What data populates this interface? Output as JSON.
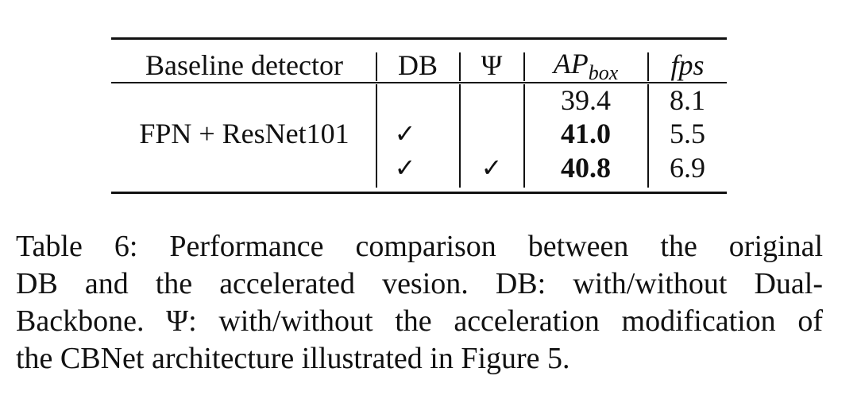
{
  "table": {
    "columns": {
      "baseline": "Baseline detector",
      "db": "DB",
      "psi": "Ψ",
      "ap_main": "AP",
      "ap_sub": "box",
      "fps": "fps"
    },
    "group_label": "FPN + ResNet101",
    "check_mark": "✓",
    "rows": [
      {
        "db": "",
        "psi": "",
        "ap": "39.4",
        "ap_bold": false,
        "fps": "8.1"
      },
      {
        "db": "✓",
        "psi": "",
        "ap": "41.0",
        "ap_bold": true,
        "fps": "5.5"
      },
      {
        "db": "✓",
        "psi": "✓",
        "ap": "40.8",
        "ap_bold": true,
        "fps": "6.9"
      }
    ]
  },
  "caption": {
    "lines": [
      "Table 6: Performance comparison between the original",
      "DB and the accelerated vesion. DB: with/without Dual-",
      "Backbone. Ψ: with/without the acceleration modification of",
      "the CBNet architecture illustrated in Figure 5."
    ]
  }
}
